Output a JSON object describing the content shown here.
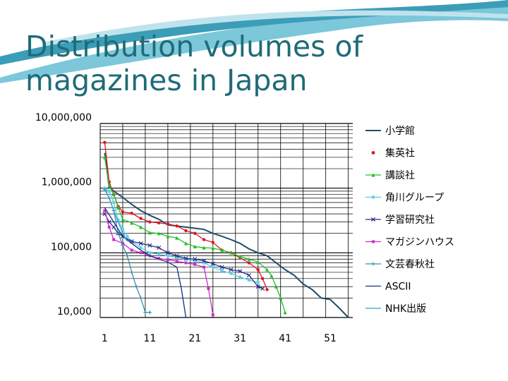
{
  "slide": {
    "title_line1": "Distribution volumes of",
    "title_line2": "magazines in Japan",
    "accent_color": "#1f6b78",
    "swoosh_colors": [
      "#7cc7da",
      "#3c9db8",
      "#bfe3ec"
    ]
  },
  "chart_data": {
    "type": "line",
    "yscale": "log",
    "ylim": [
      10000,
      10000000
    ],
    "yticks": [
      "10,000,000",
      "1,000,000",
      "100,000",
      "10,000"
    ],
    "ytick_values": [
      10000000,
      1000000,
      100000,
      10000
    ],
    "xlim": [
      0,
      56
    ],
    "xticks": [
      "1",
      "11",
      "21",
      "31",
      "41",
      "51"
    ],
    "xtick_values": [
      1,
      11,
      21,
      31,
      41,
      51
    ],
    "grid": "vertical and horizontal",
    "legend_position": "right",
    "series": [
      {
        "name": "小学館",
        "color": "#1f4e6b",
        "marker": "none",
        "x": [
          1,
          2,
          3,
          5,
          7,
          9,
          11,
          13,
          15,
          17,
          19,
          21,
          23,
          25,
          27,
          29,
          31,
          33,
          35,
          37,
          39,
          41,
          43,
          45,
          47,
          49,
          51,
          53,
          55
        ],
        "y": [
          3500000,
          1050000,
          900000,
          720000,
          560000,
          450000,
          380000,
          330000,
          270000,
          260000,
          250000,
          240000,
          230000,
          200000,
          180000,
          160000,
          140000,
          115000,
          100000,
          90000,
          70000,
          55000,
          45000,
          33000,
          27000,
          20000,
          19000,
          14000,
          10000
        ]
      },
      {
        "name": "集英社",
        "color": "#e0141e",
        "marker": "dot",
        "x": [
          1,
          2,
          3,
          4,
          5,
          7,
          9,
          11,
          13,
          15,
          17,
          19,
          21,
          23,
          25,
          27,
          29,
          31,
          33,
          35,
          36,
          37
        ],
        "y": [
          5100000,
          1250000,
          800000,
          520000,
          430000,
          410000,
          340000,
          300000,
          290000,
          280000,
          260000,
          220000,
          200000,
          160000,
          145000,
          110000,
          100000,
          84000,
          70000,
          55000,
          40000,
          27000
        ]
      },
      {
        "name": "講談社",
        "color": "#22c02a",
        "marker": "triangle",
        "x": [
          1,
          2,
          3,
          4,
          5,
          7,
          9,
          11,
          13,
          15,
          17,
          19,
          21,
          23,
          25,
          27,
          29,
          31,
          33,
          35,
          37,
          38,
          39,
          40,
          41
        ],
        "y": [
          3000000,
          1100000,
          800000,
          500000,
          330000,
          290000,
          250000,
          205000,
          200000,
          180000,
          170000,
          140000,
          125000,
          120000,
          118000,
          110000,
          100000,
          88000,
          80000,
          72000,
          55000,
          44000,
          30000,
          20000,
          12000
        ]
      },
      {
        "name": "角川グループ",
        "color": "#58cfe5",
        "marker": "star",
        "x": [
          1,
          2,
          3,
          4,
          5,
          6,
          7,
          9,
          11,
          13,
          15,
          17,
          19,
          21,
          23,
          25,
          27,
          29,
          31,
          33,
          35
        ],
        "y": [
          1000000,
          900000,
          600000,
          320000,
          230000,
          180000,
          150000,
          120000,
          100000,
          95000,
          90000,
          85000,
          80000,
          75000,
          70000,
          60000,
          53000,
          48000,
          42000,
          38000,
          35000
        ]
      },
      {
        "name": "学習研究社",
        "color": "#2b2f8a",
        "marker": "x",
        "x": [
          1,
          2,
          3,
          4,
          5,
          7,
          9,
          11,
          13,
          15,
          17,
          19,
          21,
          23,
          25,
          27,
          29,
          31,
          33,
          35,
          36
        ],
        "y": [
          400000,
          300000,
          250000,
          200000,
          180000,
          150000,
          140000,
          130000,
          120000,
          100000,
          90000,
          82000,
          80000,
          75000,
          68000,
          60000,
          55000,
          52000,
          45000,
          30000,
          28000
        ]
      },
      {
        "name": "マガジンハウス",
        "color": "#d02ad0",
        "marker": "square",
        "x": [
          1,
          2,
          3,
          5,
          7,
          9,
          11,
          13,
          15,
          17,
          19,
          21,
          23,
          24,
          25
        ],
        "y": [
          450000,
          250000,
          160000,
          140000,
          110000,
          100000,
          90000,
          82000,
          78000,
          74000,
          70000,
          66000,
          60000,
          28000,
          11000
        ]
      },
      {
        "name": "文芸春秋社",
        "color": "#3a8fb0",
        "marker": "plus",
        "x": [
          1,
          2,
          3,
          4,
          5,
          6,
          7,
          8,
          9,
          10,
          11
        ],
        "y": [
          950000,
          700000,
          450000,
          200000,
          130000,
          90000,
          50000,
          30000,
          20000,
          12000,
          12000
        ]
      },
      {
        "name": "ASCII",
        "color": "#1a2e86",
        "marker": "dash",
        "x": [
          1,
          3,
          5,
          7,
          9,
          11,
          13,
          15,
          17,
          18,
          19
        ],
        "y": [
          500000,
          300000,
          180000,
          140000,
          110000,
          90000,
          80000,
          72000,
          60000,
          28000,
          10000
        ]
      },
      {
        "name": "NHK出版",
        "color": "#2fa6d0",
        "marker": "dash",
        "x": [
          1,
          2,
          3,
          4,
          5,
          6
        ],
        "y": [
          1000000,
          700000,
          450000,
          300000,
          200000,
          150000
        ]
      }
    ]
  }
}
